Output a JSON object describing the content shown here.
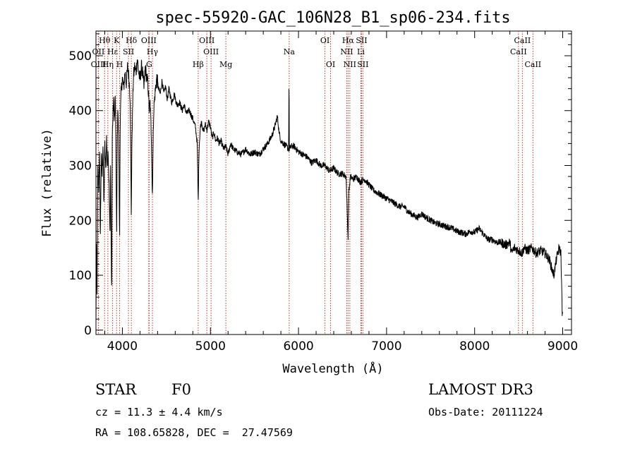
{
  "chart_data": {
    "type": "line",
    "title": "spec-55920-GAC_106N28_B1_sp06-234.fits",
    "xlabel": "Wavelength (Å)",
    "ylabel": "Flux (relative)",
    "xlim": [
      3700,
      9100
    ],
    "ylim": [
      -8,
      545
    ],
    "xticks": [
      4000,
      5000,
      6000,
      7000,
      8000,
      9000
    ],
    "yticks": [
      0,
      100,
      200,
      300,
      400,
      500
    ],
    "spectrum_anchor_points": [
      [
        3700,
        5
      ],
      [
        3705,
        160
      ],
      [
        3712,
        60
      ],
      [
        3720,
        300
      ],
      [
        3730,
        250
      ],
      [
        3740,
        330
      ],
      [
        3750,
        170
      ],
      [
        3760,
        320
      ],
      [
        3770,
        280
      ],
      [
        3780,
        345
      ],
      [
        3790,
        220
      ],
      [
        3800,
        340
      ],
      [
        3810,
        290
      ],
      [
        3820,
        350
      ],
      [
        3830,
        300
      ],
      [
        3840,
        320
      ],
      [
        3850,
        260
      ],
      [
        3860,
        170
      ],
      [
        3866,
        310
      ],
      [
        3875,
        100
      ],
      [
        3880,
        90
      ],
      [
        3885,
        360
      ],
      [
        3900,
        420
      ],
      [
        3910,
        380
      ],
      [
        3920,
        430
      ],
      [
        3930,
        260
      ],
      [
        3935,
        170
      ],
      [
        3942,
        350
      ],
      [
        3950,
        410
      ],
      [
        3960,
        320
      ],
      [
        3968,
        150
      ],
      [
        3975,
        370
      ],
      [
        3985,
        430
      ],
      [
        4000,
        460
      ],
      [
        4015,
        440
      ],
      [
        4030,
        470
      ],
      [
        4045,
        450
      ],
      [
        4060,
        480
      ],
      [
        4075,
        460
      ],
      [
        4090,
        420
      ],
      [
        4101,
        210
      ],
      [
        4110,
        360
      ],
      [
        4125,
        460
      ],
      [
        4140,
        480
      ],
      [
        4155,
        470
      ],
      [
        4170,
        495
      ],
      [
        4185,
        470
      ],
      [
        4200,
        455
      ],
      [
        4215,
        480
      ],
      [
        4230,
        470
      ],
      [
        4245,
        440
      ],
      [
        4260,
        480
      ],
      [
        4275,
        460
      ],
      [
        4290,
        450
      ],
      [
        4305,
        400
      ],
      [
        4315,
        415
      ],
      [
        4325,
        370
      ],
      [
        4330,
        350
      ],
      [
        4340,
        240
      ],
      [
        4348,
        330
      ],
      [
        4355,
        400
      ],
      [
        4370,
        430
      ],
      [
        4390,
        460
      ],
      [
        4410,
        440
      ],
      [
        4430,
        430
      ],
      [
        4450,
        455
      ],
      [
        4470,
        430
      ],
      [
        4490,
        445
      ],
      [
        4510,
        420
      ],
      [
        4530,
        440
      ],
      [
        4560,
        415
      ],
      [
        4590,
        430
      ],
      [
        4620,
        410
      ],
      [
        4650,
        415
      ],
      [
        4680,
        400
      ],
      [
        4700,
        410
      ],
      [
        4730,
        395
      ],
      [
        4760,
        400
      ],
      [
        4800,
        385
      ],
      [
        4830,
        370
      ],
      [
        4850,
        340
      ],
      [
        4861,
        230
      ],
      [
        4870,
        330
      ],
      [
        4885,
        370
      ],
      [
        4900,
        380
      ],
      [
        4920,
        360
      ],
      [
        4940,
        375
      ],
      [
        4960,
        365
      ],
      [
        4980,
        380
      ],
      [
        5000,
        370
      ],
      [
        5020,
        350
      ],
      [
        5040,
        360
      ],
      [
        5060,
        345
      ],
      [
        5080,
        350
      ],
      [
        5100,
        340
      ],
      [
        5120,
        345
      ],
      [
        5150,
        330
      ],
      [
        5175,
        335
      ],
      [
        5200,
        320
      ],
      [
        5230,
        340
      ],
      [
        5260,
        330
      ],
      [
        5300,
        325
      ],
      [
        5350,
        320
      ],
      [
        5400,
        330
      ],
      [
        5450,
        320
      ],
      [
        5500,
        325
      ],
      [
        5550,
        320
      ],
      [
        5600,
        330
      ],
      [
        5650,
        340
      ],
      [
        5700,
        355
      ],
      [
        5730,
        370
      ],
      [
        5760,
        390
      ],
      [
        5780,
        360
      ],
      [
        5800,
        345
      ],
      [
        5830,
        340
      ],
      [
        5860,
        335
      ],
      [
        5888,
        330
      ],
      [
        5892,
        470
      ],
      [
        5896,
        330
      ],
      [
        5920,
        335
      ],
      [
        5950,
        335
      ],
      [
        6000,
        325
      ],
      [
        6050,
        320
      ],
      [
        6100,
        315
      ],
      [
        6150,
        305
      ],
      [
        6200,
        310
      ],
      [
        6250,
        300
      ],
      [
        6300,
        300
      ],
      [
        6350,
        290
      ],
      [
        6400,
        295
      ],
      [
        6450,
        285
      ],
      [
        6500,
        285
      ],
      [
        6540,
        280
      ],
      [
        6556,
        200
      ],
      [
        6563,
        165
      ],
      [
        6570,
        250
      ],
      [
        6590,
        280
      ],
      [
        6620,
        275
      ],
      [
        6660,
        280
      ],
      [
        6700,
        270
      ],
      [
        6750,
        275
      ],
      [
        6800,
        265
      ],
      [
        6850,
        255
      ],
      [
        6900,
        250
      ],
      [
        6950,
        245
      ],
      [
        7000,
        240
      ],
      [
        7050,
        235
      ],
      [
        7100,
        230
      ],
      [
        7150,
        225
      ],
      [
        7200,
        225
      ],
      [
        7250,
        215
      ],
      [
        7300,
        210
      ],
      [
        7350,
        205
      ],
      [
        7400,
        212
      ],
      [
        7450,
        205
      ],
      [
        7500,
        200
      ],
      [
        7550,
        195
      ],
      [
        7600,
        193
      ],
      [
        7650,
        190
      ],
      [
        7700,
        188
      ],
      [
        7750,
        185
      ],
      [
        7800,
        180
      ],
      [
        7850,
        178
      ],
      [
        7900,
        175
      ],
      [
        7950,
        180
      ],
      [
        8000,
        178
      ],
      [
        8050,
        185
      ],
      [
        8100,
        175
      ],
      [
        8150,
        165
      ],
      [
        8200,
        165
      ],
      [
        8250,
        160
      ],
      [
        8300,
        160
      ],
      [
        8350,
        155
      ],
      [
        8400,
        160
      ],
      [
        8420,
        140
      ],
      [
        8450,
        150
      ],
      [
        8500,
        145
      ],
      [
        8540,
        140
      ],
      [
        8560,
        150
      ],
      [
        8600,
        145
      ],
      [
        8650,
        150
      ],
      [
        8700,
        140
      ],
      [
        8750,
        145
      ],
      [
        8800,
        140
      ],
      [
        8850,
        128
      ],
      [
        8880,
        110
      ],
      [
        8900,
        100
      ],
      [
        8930,
        130
      ],
      [
        8960,
        150
      ],
      [
        8980,
        140
      ],
      [
        8995,
        30
      ],
      [
        9000,
        25
      ]
    ],
    "lines": [
      {
        "name": "Hθ",
        "wavelength": 3798,
        "row": 1
      },
      {
        "name": "OII",
        "wavelength": 3727,
        "row": 2
      },
      {
        "name": "OIII",
        "wavelength": 3729,
        "row": 3
      },
      {
        "name": "Hη",
        "wavelength": 3835,
        "row": 3
      },
      {
        "name": "Hε",
        "wavelength": 3889,
        "row": 2
      },
      {
        "name": "K",
        "wavelength": 3934,
        "row": 1
      },
      {
        "name": "H",
        "wavelength": 3969,
        "row": 3
      },
      {
        "name": "SII",
        "wavelength": 4069,
        "row": 2
      },
      {
        "name": "Hδ",
        "wavelength": 4102,
        "row": 1
      },
      {
        "name": "OIII",
        "wavelength": 4300,
        "row": 1
      },
      {
        "name": "Hγ",
        "wavelength": 4341,
        "row": 2
      },
      {
        "name": "G",
        "wavelength": 4304,
        "row": 3
      },
      {
        "name": "Hβ",
        "wavelength": 4861,
        "row": 3
      },
      {
        "name": "OIII",
        "wavelength": 4959,
        "row": 1
      },
      {
        "name": "OIII",
        "wavelength": 5007,
        "row": 2
      },
      {
        "name": "Mg",
        "wavelength": 5175,
        "row": 3
      },
      {
        "name": "Na",
        "wavelength": 5894,
        "row": 2
      },
      {
        "name": "OI",
        "wavelength": 6300,
        "row": 1
      },
      {
        "name": "OI",
        "wavelength": 6364,
        "row": 3
      },
      {
        "name": "Hα",
        "wavelength": 6563,
        "row": 1
      },
      {
        "name": "NII",
        "wavelength": 6548,
        "row": 2
      },
      {
        "name": "NII",
        "wavelength": 6583,
        "row": 3
      },
      {
        "name": "SII",
        "wavelength": 6716,
        "row": 1
      },
      {
        "name": "Li",
        "wavelength": 6708,
        "row": 2
      },
      {
        "name": "SII",
        "wavelength": 6731,
        "row": 3
      },
      {
        "name": "CaII",
        "wavelength": 8542,
        "row": 1
      },
      {
        "name": "CaII",
        "wavelength": 8498,
        "row": 2
      },
      {
        "name": "CaII",
        "wavelength": 8662,
        "row": 3
      }
    ]
  },
  "footer": {
    "class_label": "STAR",
    "subclass_label": "F0",
    "redshift_text": "cz = 11.3 ± 4.4 km/s",
    "coords_text": "RA = 108.65828, DEC =  27.47569",
    "survey_label": "LAMOST DR3",
    "obs_date_text": "Obs-Date: 20111224"
  }
}
